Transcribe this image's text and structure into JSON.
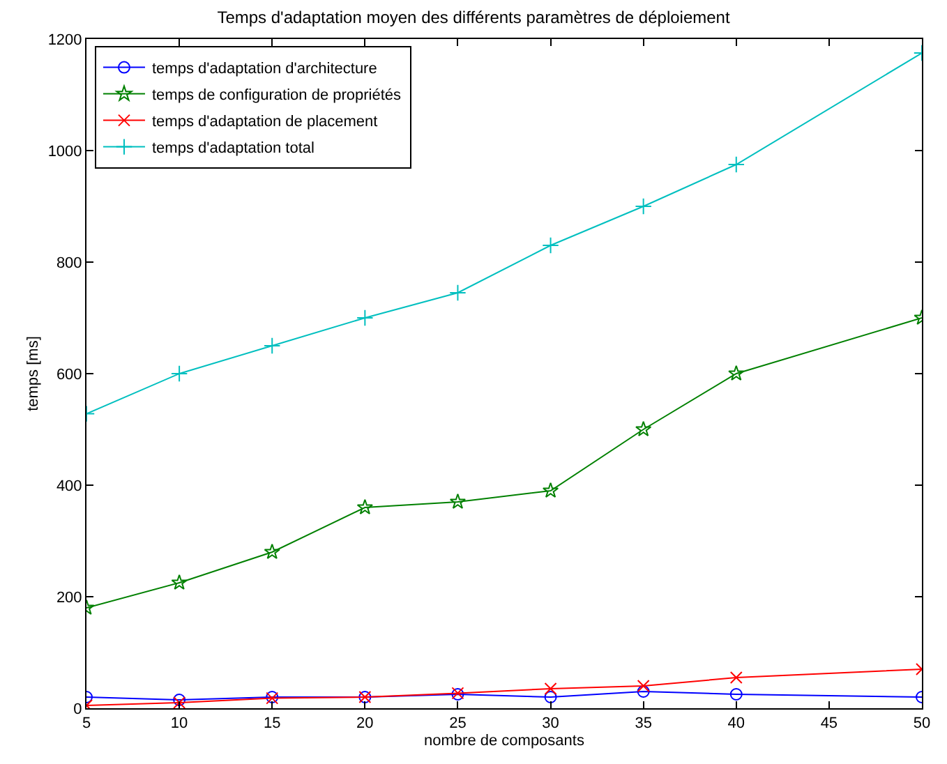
{
  "chart_data": {
    "type": "line",
    "title": "Temps d'adaptation moyen des différents paramètres de déploiement",
    "xlabel": "nombre de composants",
    "ylabel": "temps [ms]",
    "xlim": [
      5,
      50
    ],
    "xticks": [
      5,
      10,
      15,
      20,
      25,
      30,
      35,
      40,
      45,
      50
    ],
    "ylim": [
      0,
      1200
    ],
    "yticks": [
      0,
      200,
      400,
      600,
      800,
      1000,
      1200
    ],
    "grid": false,
    "legend": "top left",
    "line_style": "solid",
    "series": [
      {
        "name": "temps d'adaptation d'architecture",
        "color": "#0000ff",
        "marker": "circle",
        "x": [
          5,
          10,
          15,
          20,
          25,
          30,
          35,
          40,
          50
        ],
        "values": [
          20,
          15,
          20,
          20,
          25,
          20,
          30,
          25,
          20
        ]
      },
      {
        "name": "temps de configuration de propriétés",
        "color": "#008000",
        "marker": "star",
        "x": [
          5,
          10,
          15,
          20,
          25,
          30,
          35,
          40,
          50
        ],
        "values": [
          180,
          225,
          280,
          360,
          370,
          390,
          500,
          600,
          700
        ]
      },
      {
        "name": "temps d'adaptation de placement",
        "color": "#ff0000",
        "marker": "cross",
        "x": [
          5,
          10,
          15,
          20,
          25,
          30,
          35,
          40,
          50
        ],
        "values": [
          5,
          10,
          18,
          20,
          27,
          35,
          40,
          55,
          70
        ]
      },
      {
        "name": "temps d'adaptation total",
        "color": "#00bfbf",
        "marker": "plus",
        "x": [
          5,
          10,
          15,
          20,
          25,
          30,
          35,
          40,
          50
        ],
        "values": [
          528,
          600,
          650,
          700,
          745,
          830,
          900,
          975,
          1175
        ]
      }
    ]
  }
}
